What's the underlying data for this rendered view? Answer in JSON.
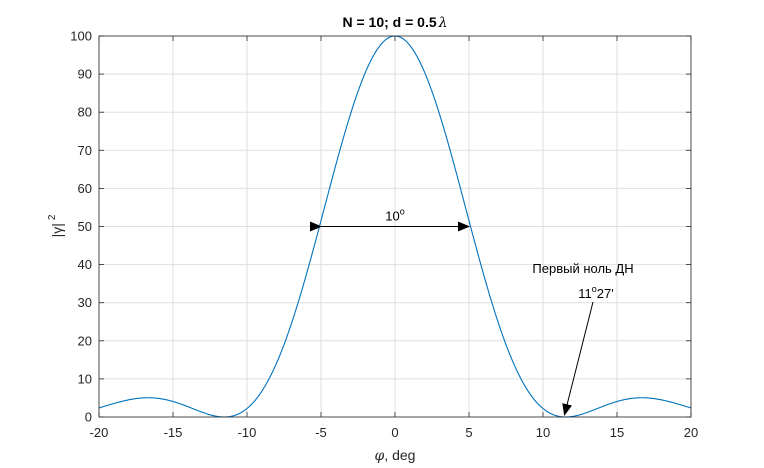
{
  "chart_data": {
    "type": "line",
    "title": "N = 10; d = 0.5",
    "title_symbol": "λ",
    "xlabel_symbol": "φ",
    "xlabel": ", deg",
    "ylabel_base": "|γ|",
    "ylabel_sup": "2",
    "xlim": [
      -20,
      20
    ],
    "ylim": [
      0,
      100
    ],
    "x_ticks": [
      -20,
      -15,
      -10,
      -5,
      0,
      5,
      10,
      15,
      20
    ],
    "y_ticks": [
      0,
      10,
      20,
      30,
      40,
      50,
      60,
      70,
      80,
      90,
      100
    ],
    "grid": true,
    "line_color": "#0072BD",
    "series": [
      {
        "x": [
          -20,
          -19,
          -18,
          -17,
          -16.7,
          -16,
          -15,
          -14,
          -13,
          -12,
          -11.5,
          -11,
          -10,
          -9,
          -8,
          -7,
          -6,
          -5,
          -4,
          -3,
          -2,
          -1,
          0,
          1,
          2,
          3,
          4,
          5,
          6,
          7,
          8,
          9,
          10,
          11,
          11.5,
          12,
          13,
          14,
          15,
          16,
          16.7,
          17,
          18,
          19,
          20
        ],
        "values": [
          2.4,
          3.6,
          4.5,
          5.0,
          5.0,
          4.8,
          3.7,
          2.3,
          0.9,
          0.08,
          0,
          0.3,
          2.8,
          7.5,
          14.4,
          23.4,
          34.0,
          50.0,
          63.5,
          77.5,
          89.5,
          97.4,
          100,
          97.4,
          89.5,
          77.5,
          63.5,
          50.0,
          34.0,
          23.4,
          14.4,
          7.5,
          2.8,
          0.3,
          0,
          0.08,
          0.9,
          2.3,
          3.7,
          4.8,
          5.0,
          5.0,
          4.5,
          3.6,
          2.4
        ]
      }
    ],
    "annotations": {
      "beamwidth_base": "10",
      "beamwidth_sup": "o",
      "beamwidth_x": [
        -5,
        5
      ],
      "beamwidth_y": 50,
      "first_null_label": "Первый ноль ДН",
      "first_null_deg": "11",
      "first_null_sup": "o",
      "first_null_min": "27'",
      "first_null_x": 11.45,
      "first_null_y": 0
    }
  }
}
